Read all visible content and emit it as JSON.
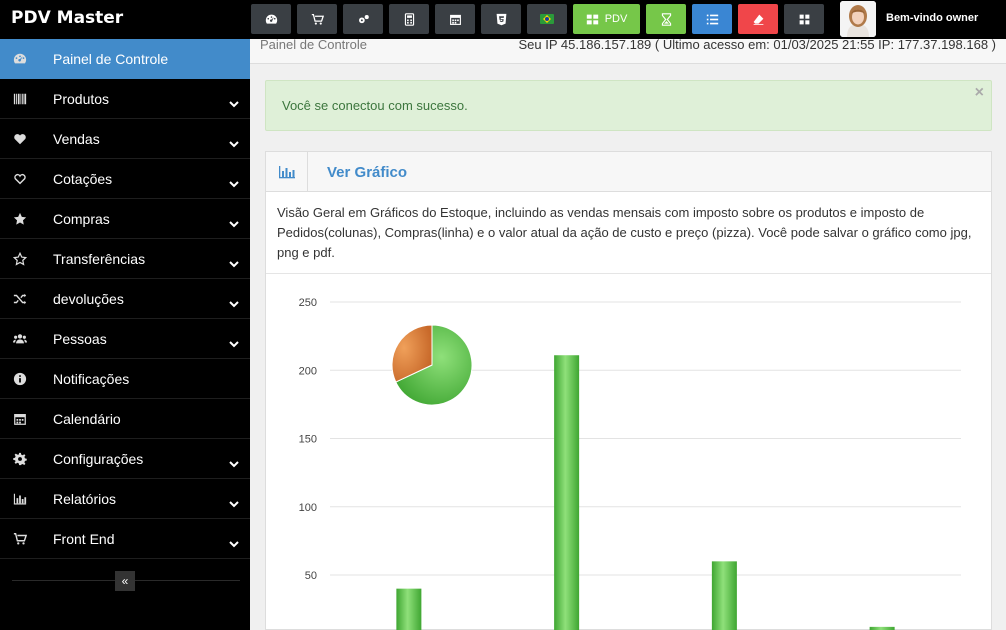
{
  "app": {
    "brand": "PDV Master"
  },
  "toolbar": {
    "pdv_label": "PDV",
    "welcome": "Bem-vindo owner",
    "buttons": [
      {
        "icon": "dashboard-icon",
        "color": "#3a3f44"
      },
      {
        "icon": "cart-icon",
        "color": "#3a3f44"
      },
      {
        "icon": "cogs-icon",
        "color": "#3a3f44"
      },
      {
        "icon": "calculator-icon",
        "color": "#3a3f44"
      },
      {
        "icon": "calendar-icon",
        "color": "#3a3f44"
      },
      {
        "icon": "css3-icon",
        "color": "#3a3f44"
      },
      {
        "icon": "brazil-flag-icon",
        "color": "#3a3f44"
      },
      {
        "icon": "grid-icon",
        "color": "#76c749"
      },
      {
        "icon": "hourglass-icon",
        "color": "#76c749"
      },
      {
        "icon": "list-icon",
        "color": "#3a86d3"
      },
      {
        "icon": "eraser-icon",
        "color": "#f0464a"
      },
      {
        "icon": "windows-icon",
        "color": "#3a3f44"
      }
    ]
  },
  "sidebar": {
    "items": [
      {
        "label": "Painel de Controle",
        "icon": "dashboard-icon",
        "active": true,
        "chevron": false
      },
      {
        "label": "Produtos",
        "icon": "barcode-icon",
        "chevron": true
      },
      {
        "label": "Vendas",
        "icon": "heart-icon",
        "chevron": true
      },
      {
        "label": "Cotações",
        "icon": "heart-outline-icon",
        "chevron": true
      },
      {
        "label": "Compras",
        "icon": "star-icon",
        "chevron": true
      },
      {
        "label": "Transferências",
        "icon": "star-outline-icon",
        "chevron": true
      },
      {
        "label": "devoluções",
        "icon": "random-icon",
        "chevron": true
      },
      {
        "label": "Pessoas",
        "icon": "users-icon",
        "chevron": true
      },
      {
        "label": "Notificações",
        "icon": "info-icon",
        "chevron": false
      },
      {
        "label": "Calendário",
        "icon": "calendar-icon",
        "chevron": false
      },
      {
        "label": "Configurações",
        "icon": "cog-icon",
        "chevron": true
      },
      {
        "label": "Relatórios",
        "icon": "bar-chart-icon",
        "chevron": true
      },
      {
        "label": "Front End",
        "icon": "cart-icon",
        "chevron": true
      }
    ],
    "collapse_label": "«"
  },
  "breadcrumb": {
    "current": "Painel de Controle",
    "ip_info": "Seu IP 45.186.157.189 ( Último acesso em: 01/03/2025 21:55 IP: 177.37.198.168 )"
  },
  "alert": {
    "message": "Você se conectou com sucesso.",
    "close": "×",
    "color": "#dff0d8"
  },
  "panel": {
    "title": "Ver Gráfico",
    "description": "Visão Geral em Gráficos do Estoque, incluindo as vendas mensais com imposto sobre os produtos e imposto de Pedidos(colunas), Compras(linha) e o valor atual da ação de custo e preço (pizza). Você pode salvar o gráfico como jpg, png e pdf."
  },
  "chart_data": [
    {
      "type": "bar",
      "y_ticks": [
        "250",
        "200",
        "150",
        "100",
        "50"
      ],
      "ylim": [
        0,
        250
      ],
      "values": [
        40,
        211,
        60,
        12
      ],
      "grid": true,
      "color": "#5cc84a"
    },
    {
      "type": "pie",
      "values": [
        68,
        32
      ],
      "colors": [
        "#5cc84a",
        "#e0843a"
      ]
    }
  ]
}
